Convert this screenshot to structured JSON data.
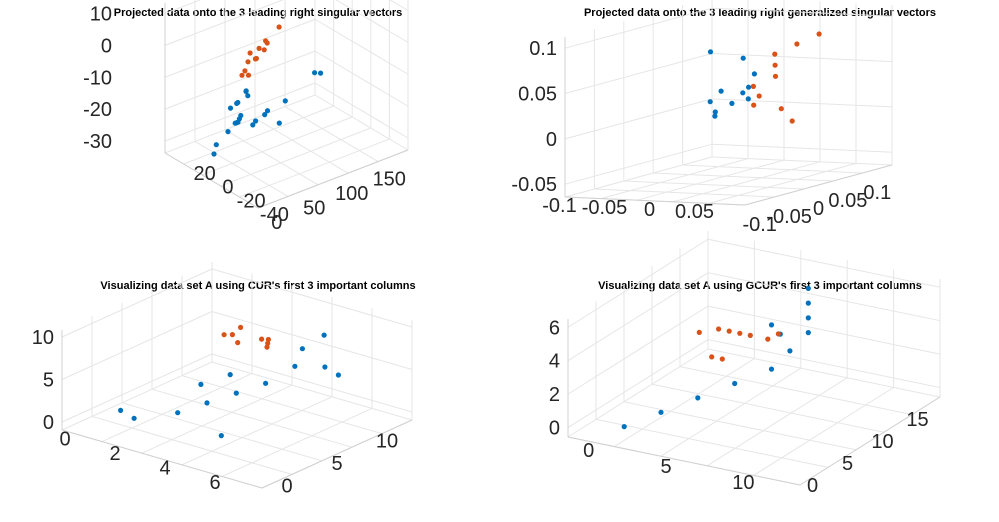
{
  "colors": {
    "class1": "#0072BD",
    "class2": "#D95319",
    "grid": "#E6E6E6",
    "text": "#262626"
  },
  "chart_data": [
    {
      "type": "scatter",
      "title": "Projected data onto the 3 leading right singular vectors",
      "z_ticks": [
        "10",
        "0",
        "-10",
        "-20",
        "-30"
      ],
      "x_ticks": [
        "0",
        "50",
        "100",
        "150"
      ],
      "y_ticks": [
        "20",
        "0",
        "-20",
        "-40"
      ],
      "xlim": [
        -10,
        160
      ],
      "ylim": [
        -50,
        30
      ],
      "zlim": [
        -35,
        18
      ],
      "series": [
        {
          "color_key": "class1",
          "points": [
            [
              5,
              -5,
              -10
            ],
            [
              10,
              0,
              -12
            ],
            [
              15,
              -5,
              -15
            ],
            [
              20,
              -10,
              -18
            ],
            [
              25,
              -15,
              -20
            ],
            [
              30,
              -20,
              -22
            ],
            [
              40,
              -10,
              -20
            ],
            [
              50,
              -20,
              -25
            ],
            [
              60,
              -15,
              -20
            ],
            [
              70,
              -25,
              -25
            ],
            [
              80,
              -20,
              -28
            ],
            [
              100,
              -30,
              -25
            ],
            [
              120,
              -20,
              -15
            ],
            [
              140,
              -30,
              -20
            ],
            [
              0,
              5,
              -5
            ],
            [
              3,
              10,
              0
            ],
            [
              8,
              -2,
              -8
            ],
            [
              12,
              3,
              -3
            ],
            [
              18,
              0,
              -6
            ],
            [
              2,
              -15,
              -25
            ],
            [
              6,
              -20,
              -30
            ],
            [
              35,
              -30,
              -28
            ]
          ]
        },
        {
          "color_key": "class2",
          "points": [
            [
              5,
              10,
              10
            ],
            [
              10,
              8,
              12
            ],
            [
              15,
              12,
              14
            ],
            [
              20,
              5,
              8
            ],
            [
              25,
              10,
              15
            ],
            [
              8,
              15,
              12
            ],
            [
              30,
              5,
              10
            ],
            [
              3,
              12,
              6
            ],
            [
              12,
              2,
              4
            ],
            [
              40,
              0,
              10
            ],
            [
              60,
              -5,
              12
            ],
            [
              18,
              -5,
              0
            ]
          ]
        }
      ]
    },
    {
      "type": "scatter",
      "title": "Projected data onto the 3 leading right generalized singular vectors",
      "z_ticks": [
        "0.1",
        "0.05",
        "0",
        "-0.05"
      ],
      "x_ticks": [
        "-0.1",
        "-0.05",
        "0",
        "0.05",
        "0.1"
      ],
      "y_ticks": [
        "-0.1",
        "-0.05",
        "0",
        "0.05"
      ],
      "xlim": [
        -0.12,
        0.15
      ],
      "ylim": [
        -0.1,
        0.06
      ],
      "zlim": [
        -0.07,
        0.14
      ],
      "series": [
        {
          "color_key": "class1",
          "points": [
            [
              -0.02,
              0,
              0.04
            ],
            [
              -0.01,
              0.01,
              0.06
            ],
            [
              0,
              0,
              0.05
            ],
            [
              -0.03,
              -0.01,
              0.03
            ],
            [
              -0.02,
              0.02,
              0.08
            ],
            [
              -0.01,
              -0.02,
              0.02
            ],
            [
              0.01,
              0,
              0.04
            ],
            [
              -0.04,
              0,
              0.06
            ],
            [
              -0.02,
              0.01,
              0.1
            ],
            [
              -0.06,
              0,
              0.05
            ],
            [
              -0.08,
              0.01,
              0.12
            ]
          ]
        },
        {
          "color_key": "class2",
          "points": [
            [
              0.02,
              0,
              0.03
            ],
            [
              0.04,
              -0.01,
              0.05
            ],
            [
              0.06,
              0,
              0.06
            ],
            [
              0.08,
              -0.01,
              0.07
            ],
            [
              0.1,
              -0.02,
              0.08
            ],
            [
              0.05,
              0.01,
              0.02
            ],
            [
              0.03,
              0,
              0.04
            ],
            [
              0.12,
              -0.01,
              0.09
            ],
            [
              0.14,
              0,
              0.1
            ],
            [
              0.07,
              0.01,
              0.0
            ]
          ]
        }
      ]
    },
    {
      "type": "scatter",
      "title": "Visualizing data set A using CUR's first 3 important columns",
      "z_ticks": [
        "10",
        "5",
        "0"
      ],
      "x_ticks": [
        "0",
        "5",
        "10"
      ],
      "y_ticks": [
        "0",
        "2",
        "4",
        "6"
      ],
      "xlim": [
        0,
        10
      ],
      "ylim": [
        0,
        7
      ],
      "zlim": [
        -1,
        13
      ],
      "series": [
        {
          "color_key": "class1",
          "points": [
            [
              1,
              2,
              2
            ],
            [
              2,
              3,
              3
            ],
            [
              3,
              3.5,
              4
            ],
            [
              4,
              4,
              5
            ],
            [
              5,
              4.5,
              6
            ],
            [
              6,
              5,
              8
            ],
            [
              6.5,
              5,
              10
            ],
            [
              7,
              5.5,
              12
            ],
            [
              5.5,
              3,
              5
            ],
            [
              4.5,
              2.5,
              4
            ],
            [
              7,
              6,
              7
            ],
            [
              8,
              5,
              6
            ],
            [
              2,
              1,
              1
            ],
            [
              3,
              4,
              0
            ]
          ]
        },
        {
          "color_key": "class2",
          "points": [
            [
              6,
              3,
              9
            ],
            [
              7,
              3.5,
              8
            ],
            [
              8,
              3,
              7
            ],
            [
              9,
              2.5,
              6
            ],
            [
              9.5,
              2,
              5
            ],
            [
              8.5,
              1.5,
              6
            ],
            [
              7,
              2,
              8
            ],
            [
              10,
              1,
              5
            ]
          ]
        }
      ]
    },
    {
      "type": "scatter",
      "title": "Visualizing data set A using GCUR's first 3 important columns",
      "z_ticks": [
        "6",
        "4",
        "2",
        "0"
      ],
      "x_ticks": [
        "0",
        "5",
        "10",
        "15"
      ],
      "y_ticks": [
        "0",
        "5",
        "10"
      ],
      "xlim": [
        0,
        16
      ],
      "ylim": [
        0,
        12
      ],
      "zlim": [
        -0.5,
        7.5
      ],
      "series": [
        {
          "color_key": "class1",
          "points": [
            [
              2,
              2,
              0
            ],
            [
              4,
              3,
              0.5
            ],
            [
              6,
              4,
              1
            ],
            [
              8,
              5,
              1.5
            ],
            [
              10,
              6,
              2
            ],
            [
              11,
              6.5,
              3
            ],
            [
              12,
              7,
              4
            ],
            [
              12,
              7,
              5
            ],
            [
              12,
              7,
              6
            ],
            [
              12,
              7,
              7
            ],
            [
              11,
              6,
              4
            ],
            [
              10,
              6,
              5
            ]
          ]
        },
        {
          "color_key": "class2",
          "points": [
            [
              12,
              4,
              3
            ],
            [
              13,
              3,
              2.5
            ],
            [
              14,
              2,
              2
            ],
            [
              15,
              1,
              1.5
            ],
            [
              12,
              2,
              1
            ],
            [
              13,
              5,
              3
            ],
            [
              14,
              4,
              2
            ],
            [
              11,
              3,
              1.5
            ],
            [
              15,
              0,
              1
            ]
          ]
        }
      ]
    }
  ]
}
